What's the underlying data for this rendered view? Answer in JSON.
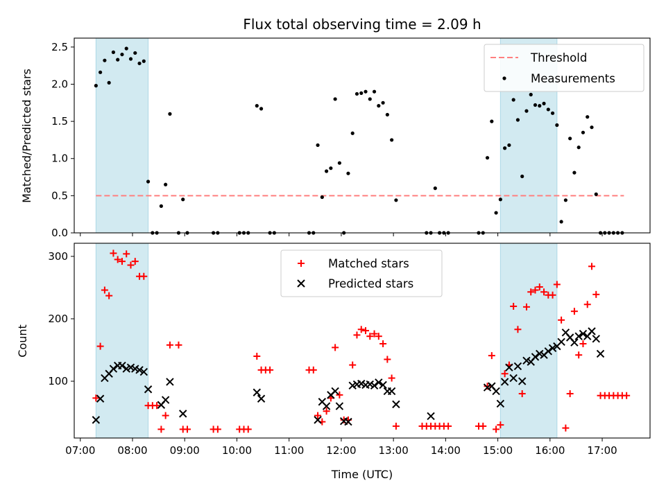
{
  "chart_data": [
    {
      "type": "scatter",
      "title": "Flux total observing time = 2.09 h",
      "xlabel": "",
      "ylabel": "Matched/Predicted stars",
      "ylim": [
        0,
        2.62
      ],
      "xlim": [
        "06:53",
        "17:55"
      ],
      "yticks": [
        "0.0",
        "0.5",
        "1.0",
        "1.5",
        "2.0",
        "2.5"
      ],
      "threshold": 0.5,
      "threshold_color": "#ff7f7f",
      "shade_color": "#add8e6",
      "shaded_ranges": [
        [
          "07:18",
          "08:18"
        ],
        [
          "15:03",
          "16:08"
        ]
      ],
      "legend": {
        "position": "top-right",
        "entries": [
          "Threshold",
          "Measurements"
        ]
      },
      "series": [
        {
          "name": "Measurements",
          "color": "#000000",
          "points": [
            [
              "07:18",
              1.98
            ],
            [
              "07:23",
              2.16
            ],
            [
              "07:28",
              2.32
            ],
            [
              "07:33",
              2.02
            ],
            [
              "07:38",
              2.43
            ],
            [
              "07:43",
              2.33
            ],
            [
              "07:48",
              2.4
            ],
            [
              "07:53",
              2.48
            ],
            [
              "07:58",
              2.34
            ],
            [
              "08:03",
              2.42
            ],
            [
              "08:08",
              2.28
            ],
            [
              "08:13",
              2.31
            ],
            [
              "08:18",
              0.69
            ],
            [
              "08:23",
              0.0
            ],
            [
              "08:28",
              0.0
            ],
            [
              "08:33",
              0.36
            ],
            [
              "08:38",
              0.65
            ],
            [
              "08:43",
              1.6
            ],
            [
              "08:53",
              0.0
            ],
            [
              "08:58",
              0.45
            ],
            [
              "09:03",
              0.0
            ],
            [
              "09:33",
              0.0
            ],
            [
              "09:38",
              0.0
            ],
            [
              "10:03",
              0.0
            ],
            [
              "10:08",
              0.0
            ],
            [
              "10:13",
              0.0
            ],
            [
              "10:23",
              1.71
            ],
            [
              "10:28",
              1.67
            ],
            [
              "10:38",
              0.0
            ],
            [
              "10:43",
              0.0
            ],
            [
              "11:23",
              0.0
            ],
            [
              "11:28",
              0.0
            ],
            [
              "11:33",
              1.18
            ],
            [
              "11:38",
              0.48
            ],
            [
              "11:43",
              0.83
            ],
            [
              "11:48",
              0.87
            ],
            [
              "11:53",
              1.8
            ],
            [
              "11:58",
              0.94
            ],
            [
              "12:03",
              0.0
            ],
            [
              "12:08",
              0.8
            ],
            [
              "12:13",
              1.34
            ],
            [
              "12:18",
              1.87
            ],
            [
              "12:23",
              1.88
            ],
            [
              "12:28",
              1.9
            ],
            [
              "12:33",
              1.8
            ],
            [
              "12:38",
              1.9
            ],
            [
              "12:43",
              1.71
            ],
            [
              "12:48",
              1.75
            ],
            [
              "12:53",
              1.59
            ],
            [
              "12:58",
              1.25
            ],
            [
              "13:03",
              0.44
            ],
            [
              "13:38",
              0.0
            ],
            [
              "13:43",
              0.0
            ],
            [
              "13:48",
              0.6
            ],
            [
              "13:53",
              0.0
            ],
            [
              "13:58",
              0.0
            ],
            [
              "14:03",
              0.0
            ],
            [
              "14:38",
              0.0
            ],
            [
              "14:43",
              0.0
            ],
            [
              "14:48",
              1.01
            ],
            [
              "14:53",
              1.5
            ],
            [
              "14:58",
              0.27
            ],
            [
              "15:03",
              0.45
            ],
            [
              "15:08",
              1.14
            ],
            [
              "15:13",
              1.18
            ],
            [
              "15:18",
              1.79
            ],
            [
              "15:23",
              1.52
            ],
            [
              "15:28",
              0.76
            ],
            [
              "15:33",
              1.64
            ],
            [
              "15:38",
              1.86
            ],
            [
              "15:43",
              1.72
            ],
            [
              "15:48",
              1.71
            ],
            [
              "15:53",
              1.74
            ],
            [
              "15:58",
              1.66
            ],
            [
              "16:03",
              1.61
            ],
            [
              "16:08",
              1.45
            ],
            [
              "16:13",
              0.15
            ],
            [
              "16:18",
              0.44
            ],
            [
              "16:23",
              1.27
            ],
            [
              "16:28",
              0.81
            ],
            [
              "16:33",
              1.15
            ],
            [
              "16:38",
              1.35
            ],
            [
              "16:43",
              1.56
            ],
            [
              "16:48",
              1.42
            ],
            [
              "16:53",
              0.52
            ],
            [
              "16:58",
              0.0
            ],
            [
              "17:03",
              0.0
            ],
            [
              "17:08",
              0.0
            ],
            [
              "17:13",
              0.0
            ],
            [
              "17:18",
              0.0
            ],
            [
              "17:23",
              0.0
            ]
          ]
        }
      ]
    },
    {
      "type": "scatter",
      "title": "",
      "xlabel": "Time (UTC)",
      "ylabel": "Count",
      "ylim": [
        9,
        321
      ],
      "xlim": [
        "06:53",
        "17:55"
      ],
      "yticks": [
        "100",
        "200",
        "300"
      ],
      "xticks": [
        "07:00",
        "08:00",
        "09:00",
        "10:00",
        "11:00",
        "12:00",
        "13:00",
        "14:00",
        "15:00",
        "16:00",
        "17:00"
      ],
      "shade_color": "#add8e6",
      "shaded_ranges": [
        [
          "07:18",
          "08:18"
        ],
        [
          "15:03",
          "16:08"
        ]
      ],
      "legend": {
        "position": "top-center",
        "entries": [
          "Matched stars",
          "Predicted stars"
        ]
      },
      "series": [
        {
          "name": "Matched stars",
          "marker": "plus",
          "color": "#ff0000",
          "points": [
            [
              "07:18",
              73
            ],
            [
              "07:23",
              156
            ],
            [
              "07:28",
              246
            ],
            [
              "07:33",
              237
            ],
            [
              "07:38",
              305
            ],
            [
              "07:43",
              295
            ],
            [
              "07:48",
              292
            ],
            [
              "07:53",
              304
            ],
            [
              "07:58",
              286
            ],
            [
              "08:03",
              292
            ],
            [
              "08:08",
              268
            ],
            [
              "08:13",
              268
            ],
            [
              "08:18",
              61
            ],
            [
              "08:23",
              61
            ],
            [
              "08:28",
              61
            ],
            [
              "08:33",
              23
            ],
            [
              "08:38",
              45
            ],
            [
              "08:43",
              158
            ],
            [
              "08:53",
              158
            ],
            [
              "08:58",
              23
            ],
            [
              "09:03",
              23
            ],
            [
              "09:33",
              23
            ],
            [
              "09:38",
              23
            ],
            [
              "10:03",
              23
            ],
            [
              "10:08",
              23
            ],
            [
              "10:13",
              23
            ],
            [
              "10:23",
              140
            ],
            [
              "10:28",
              118
            ],
            [
              "10:33",
              118
            ],
            [
              "10:38",
              118
            ],
            [
              "11:23",
              118
            ],
            [
              "11:28",
              118
            ],
            [
              "11:33",
              45
            ],
            [
              "11:38",
              35
            ],
            [
              "11:43",
              52
            ],
            [
              "11:48",
              73
            ],
            [
              "11:53",
              154
            ],
            [
              "11:58",
              78
            ],
            [
              "12:03",
              38
            ],
            [
              "12:08",
              38
            ],
            [
              "12:13",
              126
            ],
            [
              "12:18",
              174
            ],
            [
              "12:23",
              183
            ],
            [
              "12:28",
              181
            ],
            [
              "12:33",
              172
            ],
            [
              "12:38",
              176
            ],
            [
              "12:43",
              172
            ],
            [
              "12:48",
              160
            ],
            [
              "12:53",
              135
            ],
            [
              "12:58",
              105
            ],
            [
              "13:03",
              28
            ],
            [
              "13:33",
              28
            ],
            [
              "13:38",
              28
            ],
            [
              "13:43",
              28
            ],
            [
              "13:48",
              28
            ],
            [
              "13:53",
              28
            ],
            [
              "13:58",
              28
            ],
            [
              "14:03",
              28
            ],
            [
              "14:38",
              28
            ],
            [
              "14:43",
              28
            ],
            [
              "14:48",
              92
            ],
            [
              "14:53",
              141
            ],
            [
              "14:58",
              23
            ],
            [
              "15:03",
              30
            ],
            [
              "15:08",
              112
            ],
            [
              "15:13",
              126
            ],
            [
              "15:18",
              220
            ],
            [
              "15:23",
              183
            ],
            [
              "15:28",
              80
            ],
            [
              "15:33",
              219
            ],
            [
              "15:38",
              243
            ],
            [
              "15:43",
              246
            ],
            [
              "15:48",
              251
            ],
            [
              "15:53",
              243
            ],
            [
              "15:58",
              238
            ],
            [
              "16:03",
              238
            ],
            [
              "16:08",
              255
            ],
            [
              "16:13",
              198
            ],
            [
              "16:18",
              25
            ],
            [
              "16:23",
              80
            ],
            [
              "16:28",
              212
            ],
            [
              "16:33",
              142
            ],
            [
              "16:38",
              160
            ],
            [
              "16:43",
              223
            ],
            [
              "16:48",
              284
            ],
            [
              "16:53",
              239
            ],
            [
              "16:58",
              77
            ],
            [
              "17:03",
              77
            ],
            [
              "17:08",
              77
            ],
            [
              "17:13",
              77
            ],
            [
              "17:18",
              77
            ],
            [
              "17:23",
              77
            ],
            [
              "17:28",
              77
            ]
          ]
        },
        {
          "name": "Predicted stars",
          "marker": "x",
          "color": "#000000",
          "points": [
            [
              "07:18",
              38
            ],
            [
              "07:23",
              72
            ],
            [
              "07:28",
              105
            ],
            [
              "07:33",
              112
            ],
            [
              "07:38",
              120
            ],
            [
              "07:43",
              125
            ],
            [
              "07:48",
              125
            ],
            [
              "07:53",
              120
            ],
            [
              "07:58",
              122
            ],
            [
              "08:03",
              120
            ],
            [
              "08:08",
              118
            ],
            [
              "08:13",
              115
            ],
            [
              "08:18",
              87
            ],
            [
              "08:33",
              62
            ],
            [
              "08:38",
              70
            ],
            [
              "08:43",
              99
            ],
            [
              "08:58",
              48
            ],
            [
              "10:23",
              82
            ],
            [
              "10:28",
              72
            ],
            [
              "11:33",
              38
            ],
            [
              "11:38",
              67
            ],
            [
              "11:43",
              60
            ],
            [
              "11:48",
              78
            ],
            [
              "11:53",
              84
            ],
            [
              "11:58",
              60
            ],
            [
              "12:03",
              36
            ],
            [
              "12:08",
              35
            ],
            [
              "12:13",
              93
            ],
            [
              "12:18",
              95
            ],
            [
              "12:23",
              96
            ],
            [
              "12:28",
              94
            ],
            [
              "12:33",
              95
            ],
            [
              "12:38",
              93
            ],
            [
              "12:43",
              98
            ],
            [
              "12:48",
              94
            ],
            [
              "12:53",
              84
            ],
            [
              "12:58",
              84
            ],
            [
              "13:03",
              63
            ],
            [
              "13:43",
              44
            ],
            [
              "14:48",
              90
            ],
            [
              "14:53",
              92
            ],
            [
              "14:58",
              84
            ],
            [
              "15:03",
              64
            ],
            [
              "15:08",
              99
            ],
            [
              "15:13",
              122
            ],
            [
              "15:18",
              105
            ],
            [
              "15:23",
              124
            ],
            [
              "15:28",
              100
            ],
            [
              "15:33",
              133
            ],
            [
              "15:38",
              131
            ],
            [
              "15:43",
              139
            ],
            [
              "15:48",
              144
            ],
            [
              "15:53",
              142
            ],
            [
              "15:58",
              148
            ],
            [
              "16:03",
              153
            ],
            [
              "16:08",
              156
            ],
            [
              "16:13",
              163
            ],
            [
              "16:18",
              178
            ],
            [
              "16:23",
              170
            ],
            [
              "16:28",
              162
            ],
            [
              "16:33",
              172
            ],
            [
              "16:38",
              176
            ],
            [
              "16:43",
              172
            ],
            [
              "16:48",
              180
            ],
            [
              "16:53",
              168
            ],
            [
              "16:58",
              144
            ]
          ]
        }
      ]
    }
  ]
}
